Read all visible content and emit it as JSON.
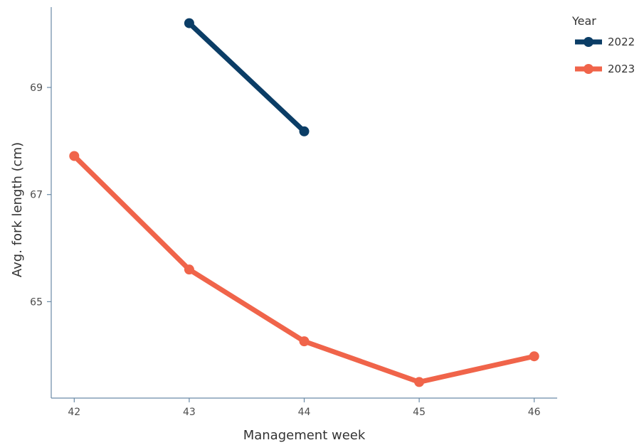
{
  "chart_data": {
    "type": "line",
    "xlabel": "Management week",
    "ylabel": "Avg. fork length (cm)",
    "x_ticks": [
      42,
      43,
      44,
      45,
      46
    ],
    "y_ticks": [
      65,
      67,
      69
    ],
    "xlim": [
      41.8,
      46.2
    ],
    "ylim": [
      63.2,
      70.5
    ],
    "legend": {
      "title": "Year",
      "placement": "top-right"
    },
    "series": [
      {
        "name": "2022",
        "color": "#0b3d66",
        "x": [
          43,
          44
        ],
        "y": [
          70.2,
          68.18
        ]
      },
      {
        "name": "2023",
        "color": "#f0644a",
        "x": [
          42,
          43,
          44,
          45,
          46
        ],
        "y": [
          67.72,
          65.6,
          64.26,
          63.5,
          63.98
        ]
      }
    ]
  }
}
